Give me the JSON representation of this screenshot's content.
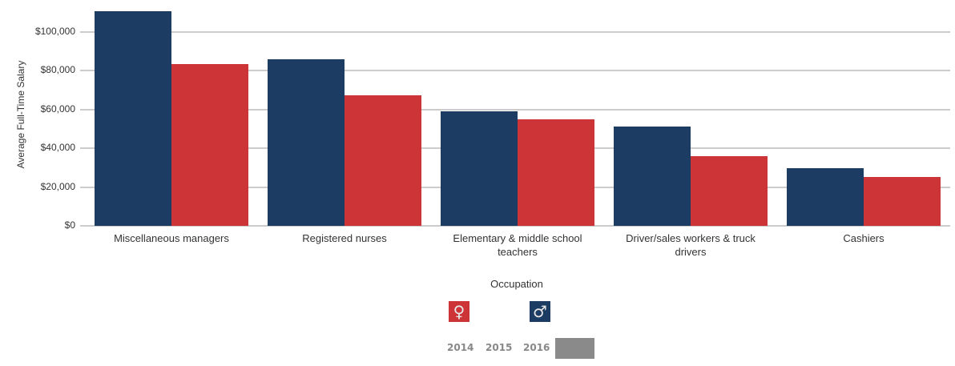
{
  "chart_data": {
    "type": "bar",
    "title": "",
    "xlabel": "Occupation",
    "ylabel": "Average Full-Time Salary",
    "ylim": [
      0,
      110000
    ],
    "yticks": [
      "$0",
      "$20,000",
      "$40,000",
      "$60,000",
      "$80,000",
      "$100,000"
    ],
    "ytick_values": [
      0,
      20000,
      40000,
      60000,
      80000,
      100000
    ],
    "grid": true,
    "categories": [
      "Miscellaneous managers",
      "Registered nurses",
      "Elementary & middle school teachers",
      "Driver/sales workers & truck drivers",
      "Cashiers"
    ],
    "series": [
      {
        "name": "Male",
        "color": "#1c3c63",
        "values": [
          110700,
          86000,
          59100,
          51200,
          29800
        ]
      },
      {
        "name": "Female",
        "color": "#cc3438",
        "values": [
          83500,
          67400,
          55000,
          36000,
          25200
        ]
      }
    ],
    "legend": {
      "position": "bottom",
      "entries": [
        "Female",
        "Male"
      ]
    }
  },
  "legend": {
    "title": "Occupation",
    "female_icon": "female-symbol-icon",
    "female_glyph": "♀",
    "female_color": "#cc3438",
    "male_icon": "male-symbol-icon",
    "male_glyph": "♂",
    "male_color": "#1c3c63"
  },
  "year_slider": {
    "years": [
      "2014",
      "2015",
      "2016"
    ],
    "handle_color": "#8a8a8a"
  }
}
